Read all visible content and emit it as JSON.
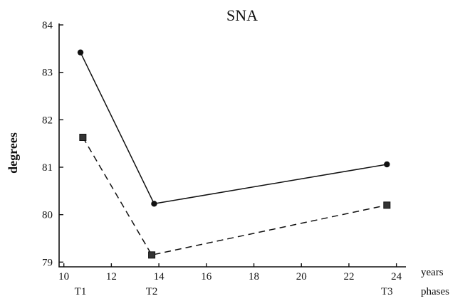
{
  "chart_data": {
    "type": "line",
    "title": "SNA",
    "ylabel": "degrees",
    "xlabel": "years",
    "phase_label": "phases",
    "x_ticks": [
      10,
      12,
      14,
      16,
      18,
      20,
      22,
      24
    ],
    "y_ticks": [
      79,
      80,
      81,
      82,
      83,
      84
    ],
    "xlim": [
      9.8,
      24.4
    ],
    "ylim": [
      78.9,
      84.0
    ],
    "phases": [
      {
        "label": "T1",
        "x": 10.7
      },
      {
        "label": "T2",
        "x": 13.7
      },
      {
        "label": "T3",
        "x": 23.6
      }
    ],
    "series": [
      {
        "marker": "circle",
        "line_style": "solid",
        "color": "#111111",
        "points": [
          {
            "x": 10.7,
            "y": 83.42
          },
          {
            "x": 13.8,
            "y": 80.23
          },
          {
            "x": 23.6,
            "y": 81.06
          }
        ]
      },
      {
        "marker": "square",
        "line_style": "dashed",
        "color": "#111111",
        "points": [
          {
            "x": 10.8,
            "y": 81.63
          },
          {
            "x": 13.7,
            "y": 79.15
          },
          {
            "x": 23.6,
            "y": 80.2
          }
        ]
      }
    ]
  }
}
